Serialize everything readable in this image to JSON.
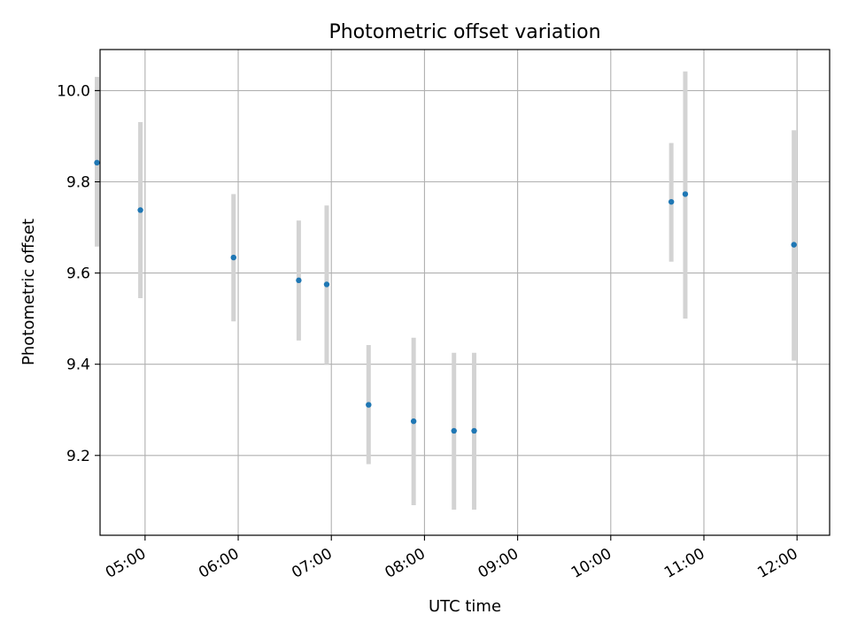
{
  "chart_data": {
    "type": "scatter",
    "title": "Photometric offset variation",
    "xlabel": "UTC time",
    "ylabel": "Photometric offset",
    "x_unit": "UTC time (HH:MM)",
    "xlim": [
      "04:31",
      "12:21"
    ],
    "ylim": [
      9.025,
      10.09
    ],
    "x_ticks": [
      "05:00",
      "06:00",
      "07:00",
      "08:00",
      "09:00",
      "10:00",
      "11:00",
      "12:00"
    ],
    "y_ticks": [
      "9.2",
      "9.4",
      "9.6",
      "9.8",
      "10.0"
    ],
    "grid": true,
    "points": [
      {
        "time": "04:29",
        "y": 9.842,
        "yerr_low": 9.658,
        "yerr_high": 10.03
      },
      {
        "time": "04:57",
        "y": 9.738,
        "yerr_low": 9.545,
        "yerr_high": 9.931
      },
      {
        "time": "05:57",
        "y": 9.634,
        "yerr_low": 9.494,
        "yerr_high": 9.773
      },
      {
        "time": "06:39",
        "y": 9.584,
        "yerr_low": 9.452,
        "yerr_high": 9.715
      },
      {
        "time": "06:57",
        "y": 9.575,
        "yerr_low": 9.4,
        "yerr_high": 9.748
      },
      {
        "time": "07:24",
        "y": 9.311,
        "yerr_low": 9.181,
        "yerr_high": 9.442
      },
      {
        "time": "07:53",
        "y": 9.275,
        "yerr_low": 9.091,
        "yerr_high": 9.458
      },
      {
        "time": "08:19",
        "y": 9.254,
        "yerr_low": 9.081,
        "yerr_high": 9.425
      },
      {
        "time": "08:32",
        "y": 9.254,
        "yerr_low": 9.081,
        "yerr_high": 9.425
      },
      {
        "time": "10:39",
        "y": 9.756,
        "yerr_low": 9.625,
        "yerr_high": 9.885
      },
      {
        "time": "10:48",
        "y": 9.773,
        "yerr_low": 9.5,
        "yerr_high": 10.042
      },
      {
        "time": "11:58",
        "y": 9.662,
        "yerr_low": 9.408,
        "yerr_high": 9.913
      }
    ],
    "marker_color": "#1f77b4",
    "errorbar_color": "#d3d3d3",
    "grid_color": "#b0b0b0"
  }
}
